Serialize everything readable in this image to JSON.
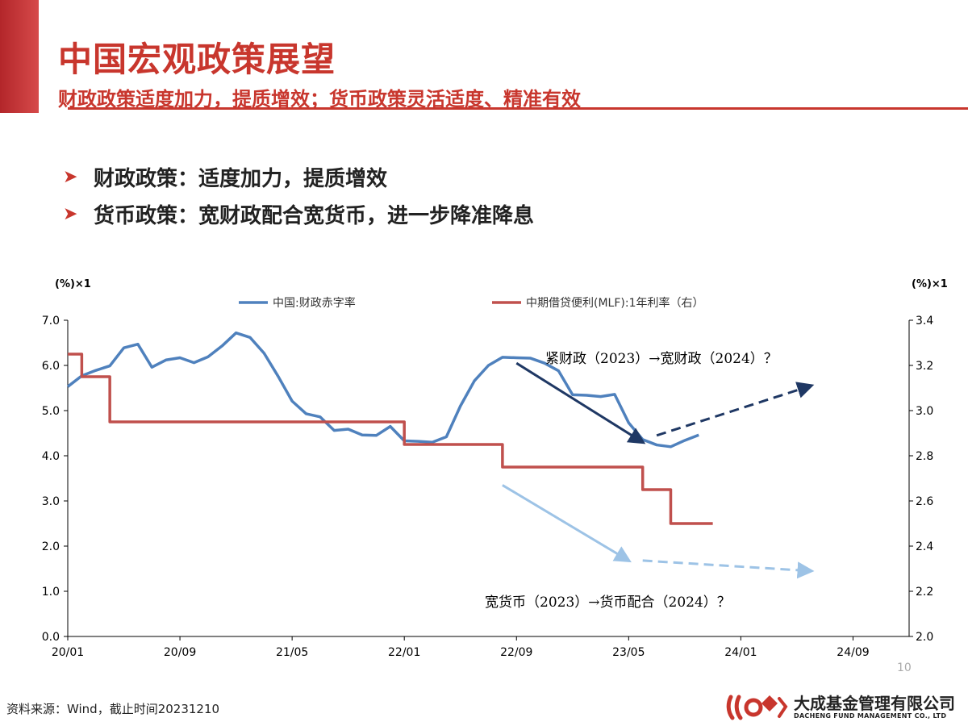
{
  "header": {
    "title": "中国宏观政策展望",
    "subtitle": "财政政策适度加力，提质增效；货币政策灵活适度、精准有效"
  },
  "bullets": [
    {
      "text": "财政政策：适度加力，提质增效"
    },
    {
      "text": "货币政策：宽财政配合宽货币，进一步降准降息"
    }
  ],
  "footer": {
    "source": "资料来源：Wind，截止时间20231210",
    "page": "10",
    "company_cn": "大成基金管理有限公司",
    "company_en": "DACHENG FUND MANAGEMENT CO., LTD"
  },
  "colors": {
    "accent": "#c8362d",
    "deficit_line": "#4f81bd",
    "mlf_line": "#c0504d",
    "arrow_dark": "#1f3864",
    "arrow_light": "#9dc3e6"
  },
  "chart_data": {
    "type": "line",
    "left_unit_label": "(%)×1",
    "right_unit_label": "(%)×1",
    "x_ticks": [
      "20/01",
      "20/09",
      "21/05",
      "22/01",
      "22/09",
      "23/05",
      "24/01",
      "24/09"
    ],
    "xlim": [
      "2020-01",
      "2024-12"
    ],
    "ylim_left": [
      0.0,
      7.0
    ],
    "ylim_right": [
      2.0,
      3.4
    ],
    "yticks_left": [
      "0.0",
      "1.0",
      "2.0",
      "3.0",
      "4.0",
      "5.0",
      "6.0",
      "7.0"
    ],
    "yticks_right": [
      "2.0",
      "2.2",
      "2.4",
      "2.6",
      "2.8",
      "3.0",
      "3.2",
      "3.4"
    ],
    "legend_position": "top",
    "series": [
      {
        "name": "中国:财政赤字率",
        "axis": "left",
        "color": "#4f81bd",
        "points": [
          [
            "2020-01",
            5.53
          ],
          [
            "2020-02",
            5.77
          ],
          [
            "2020-03",
            5.89
          ],
          [
            "2020-04",
            5.99
          ],
          [
            "2020-05",
            6.39
          ],
          [
            "2020-06",
            6.47
          ],
          [
            "2020-07",
            5.96
          ],
          [
            "2020-08",
            6.12
          ],
          [
            "2020-09",
            6.17
          ],
          [
            "2020-10",
            6.06
          ],
          [
            "2020-11",
            6.19
          ],
          [
            "2020-12",
            6.43
          ],
          [
            "2021-01",
            6.72
          ],
          [
            "2021-02",
            6.62
          ],
          [
            "2021-03",
            6.27
          ],
          [
            "2021-04",
            5.76
          ],
          [
            "2021-05",
            5.21
          ],
          [
            "2021-06",
            4.93
          ],
          [
            "2021-07",
            4.86
          ],
          [
            "2021-08",
            4.56
          ],
          [
            "2021-09",
            4.59
          ],
          [
            "2021-10",
            4.46
          ],
          [
            "2021-11",
            4.45
          ],
          [
            "2021-12",
            4.65
          ],
          [
            "2022-01",
            4.33
          ],
          [
            "2022-02",
            4.32
          ],
          [
            "2022-03",
            4.3
          ],
          [
            "2022-04",
            4.42
          ],
          [
            "2022-05",
            5.1
          ],
          [
            "2022-06",
            5.66
          ],
          [
            "2022-07",
            6.0
          ],
          [
            "2022-08",
            6.18
          ],
          [
            "2022-09",
            6.17
          ],
          [
            "2022-10",
            6.16
          ],
          [
            "2022-11",
            6.05
          ],
          [
            "2022-12",
            5.88
          ],
          [
            "2023-01",
            5.35
          ],
          [
            "2023-02",
            5.34
          ],
          [
            "2023-03",
            5.31
          ],
          [
            "2023-04",
            5.36
          ],
          [
            "2023-05",
            4.73
          ],
          [
            "2023-06",
            4.36
          ],
          [
            "2023-07",
            4.24
          ],
          [
            "2023-08",
            4.2
          ],
          [
            "2023-09",
            4.34
          ],
          [
            "2023-10",
            4.46
          ]
        ]
      },
      {
        "name": "中期借贷便利(MLF):1年利率（右）",
        "axis": "right",
        "color": "#c0504d",
        "step": true,
        "points": [
          [
            "2020-01",
            3.25
          ],
          [
            "2020-02",
            3.15
          ],
          [
            "2020-04",
            2.95
          ],
          [
            "2022-01",
            2.85
          ],
          [
            "2022-08",
            2.75
          ],
          [
            "2023-06",
            2.65
          ],
          [
            "2023-08",
            2.5
          ],
          [
            "2023-11",
            2.5
          ]
        ]
      }
    ],
    "annotations": [
      {
        "text": "紧财政（2023）→宽财政（2024）？",
        "solid_arrow": {
          "from": [
            "2022-09",
            6.05
          ],
          "to": [
            "2023-06",
            4.3
          ],
          "axis": "left",
          "color": "#1f3864"
        },
        "dashed_arrow": {
          "from": [
            "2023-07",
            4.45
          ],
          "to": [
            "2024-06",
            5.55
          ],
          "axis": "left",
          "color": "#1f3864"
        }
      },
      {
        "text": "宽货币（2023）→货币配合（2024）？",
        "solid_arrow": {
          "from": [
            "2022-08",
            3.35
          ],
          "to": [
            "2023-05",
            1.68
          ],
          "axis": "left",
          "color": "#9dc3e6"
        },
        "dashed_arrow": {
          "from": [
            "2023-06",
            1.68
          ],
          "to": [
            "2024-06",
            1.45
          ],
          "axis": "left",
          "color": "#9dc3e6"
        }
      }
    ]
  }
}
